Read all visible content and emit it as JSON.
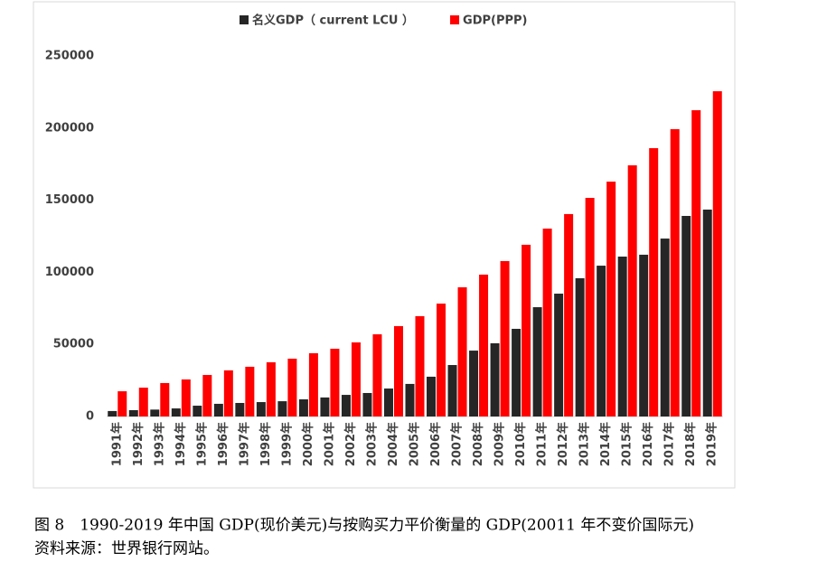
{
  "chart_data": {
    "type": "bar",
    "categories": [
      "1991年",
      "1992年",
      "1993年",
      "1994年",
      "1995年",
      "1996年",
      "1997年",
      "1998年",
      "1999年",
      "2000年",
      "2001年",
      "2002年",
      "2003年",
      "2004年",
      "2005年",
      "2006年",
      "2007年",
      "2008年",
      "2009年",
      "2010年",
      "2011年",
      "2012年",
      "2013年",
      "2014年",
      "2015年",
      "2016年",
      "2017年",
      "2018年",
      "2019年"
    ],
    "series": [
      {
        "name": "名义GDP（ current LCU ）",
        "color": "#262626",
        "values": [
          3800,
          4400,
          4800,
          5600,
          7500,
          8800,
          9400,
          10000,
          10600,
          11900,
          13200,
          15000,
          16300,
          19400,
          22600,
          27600,
          35700,
          45700,
          50800,
          60800,
          75800,
          85200,
          95900,
          104600,
          110900,
          112200,
          123400,
          139100,
          143500
        ]
      },
      {
        "name": "GDP(PPP)",
        "color": "#ff0000",
        "values": [
          17500,
          20000,
          23200,
          25700,
          28800,
          32000,
          34500,
          37600,
          40100,
          43900,
          47000,
          51400,
          57000,
          62700,
          69600,
          78300,
          89600,
          98400,
          107800,
          119100,
          130300,
          140400,
          151600,
          162900,
          174200,
          186100,
          199300,
          212400,
          225600
        ]
      }
    ],
    "ylim": [
      0,
      250000
    ],
    "yticks": [
      0,
      50000,
      100000,
      150000,
      200000,
      250000
    ],
    "grid": false,
    "legend": "top"
  },
  "caption": [
    "图 8　1990-2019 年中国 GDP(现价美元)与按购买力平价衡量的 GDP(20011 年不变价国际元)",
    "资料来源：世界银行网站。"
  ]
}
